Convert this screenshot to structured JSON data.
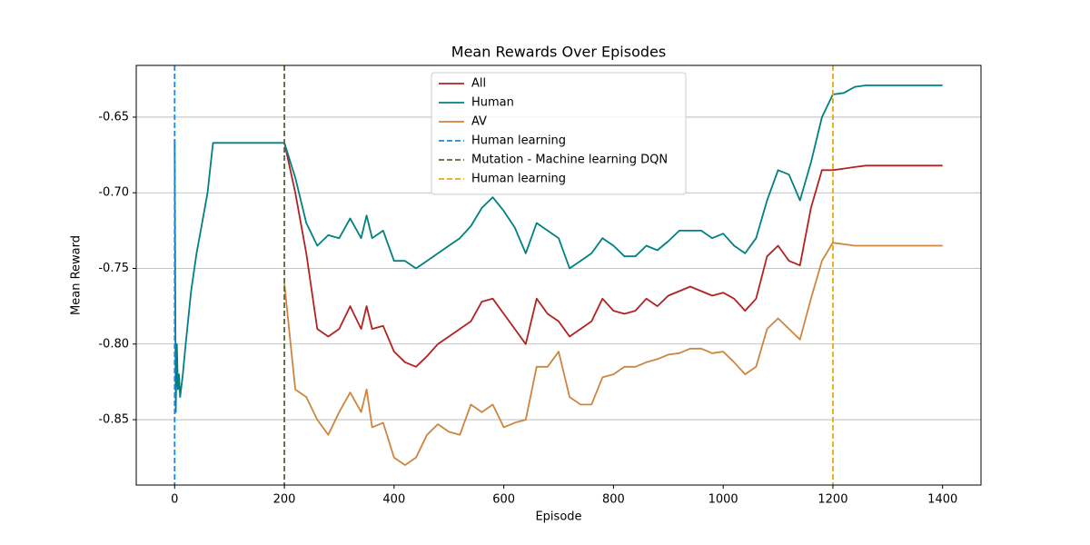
{
  "chart_data": {
    "type": "line",
    "title": "Mean Rewards Over Episodes",
    "x_label": "Episode",
    "y_label": "Mean Reward",
    "x": [
      0,
      2,
      4,
      6,
      8,
      10,
      15,
      20,
      30,
      40,
      50,
      60,
      70,
      80,
      100,
      120,
      140,
      160,
      180,
      200,
      220,
      240,
      260,
      280,
      300,
      320,
      340,
      350,
      360,
      380,
      400,
      420,
      440,
      460,
      480,
      500,
      520,
      540,
      560,
      580,
      600,
      620,
      640,
      660,
      680,
      700,
      720,
      740,
      760,
      780,
      800,
      820,
      840,
      860,
      880,
      900,
      920,
      940,
      960,
      980,
      1000,
      1020,
      1040,
      1060,
      1080,
      1100,
      1120,
      1140,
      1160,
      1180,
      1200,
      1220,
      1240,
      1260,
      1280,
      1300,
      1320,
      1340,
      1360,
      1380,
      1400
    ],
    "series": [
      {
        "name": "All",
        "color": "#b22222",
        "values": [
          null,
          null,
          null,
          null,
          null,
          null,
          null,
          null,
          null,
          null,
          null,
          null,
          null,
          null,
          null,
          null,
          null,
          null,
          null,
          -0.667,
          -0.7,
          -0.74,
          -0.79,
          -0.795,
          -0.79,
          -0.775,
          -0.79,
          -0.775,
          -0.79,
          -0.788,
          -0.805,
          -0.812,
          -0.815,
          -0.808,
          -0.8,
          -0.795,
          -0.79,
          -0.785,
          -0.772,
          -0.77,
          -0.78,
          -0.79,
          -0.8,
          -0.77,
          -0.78,
          -0.785,
          -0.795,
          -0.79,
          -0.785,
          -0.77,
          -0.778,
          -0.78,
          -0.778,
          -0.77,
          -0.775,
          -0.768,
          -0.765,
          -0.762,
          -0.765,
          -0.768,
          -0.766,
          -0.77,
          -0.778,
          -0.77,
          -0.742,
          -0.735,
          -0.745,
          -0.748,
          -0.71,
          -0.685,
          -0.685,
          -0.684,
          -0.683,
          -0.682,
          -0.682,
          -0.682,
          -0.682,
          -0.682,
          -0.682,
          -0.682,
          -0.682
        ]
      },
      {
        "name": "Human",
        "color": "#008080",
        "values": [
          -0.665,
          -0.845,
          -0.8,
          -0.83,
          -0.82,
          -0.835,
          -0.82,
          -0.8,
          -0.765,
          -0.74,
          -0.72,
          -0.7,
          -0.667,
          -0.667,
          -0.667,
          -0.667,
          -0.667,
          -0.667,
          -0.667,
          -0.667,
          -0.69,
          -0.72,
          -0.735,
          -0.728,
          -0.73,
          -0.717,
          -0.73,
          -0.715,
          -0.73,
          -0.725,
          -0.745,
          -0.745,
          -0.75,
          -0.745,
          -0.74,
          -0.735,
          -0.73,
          -0.722,
          -0.71,
          -0.703,
          -0.712,
          -0.723,
          -0.74,
          -0.72,
          -0.725,
          -0.73,
          -0.75,
          -0.745,
          -0.74,
          -0.73,
          -0.735,
          -0.742,
          -0.742,
          -0.735,
          -0.738,
          -0.732,
          -0.725,
          -0.725,
          -0.725,
          -0.73,
          -0.727,
          -0.735,
          -0.74,
          -0.73,
          -0.705,
          -0.685,
          -0.688,
          -0.705,
          -0.68,
          -0.65,
          -0.635,
          -0.634,
          -0.63,
          -0.629,
          -0.629,
          -0.629,
          -0.629,
          -0.629,
          -0.629,
          -0.629,
          -0.629
        ]
      },
      {
        "name": "AV",
        "color": "#cd853f",
        "values": [
          null,
          null,
          null,
          null,
          null,
          null,
          null,
          null,
          null,
          null,
          null,
          null,
          null,
          null,
          null,
          null,
          null,
          null,
          null,
          -0.76,
          -0.83,
          -0.835,
          -0.85,
          -0.86,
          -0.845,
          -0.832,
          -0.845,
          -0.83,
          -0.855,
          -0.852,
          -0.875,
          -0.88,
          -0.875,
          -0.86,
          -0.853,
          -0.858,
          -0.86,
          -0.84,
          -0.845,
          -0.84,
          -0.855,
          -0.852,
          -0.85,
          -0.815,
          -0.815,
          -0.805,
          -0.835,
          -0.84,
          -0.84,
          -0.822,
          -0.82,
          -0.815,
          -0.815,
          -0.812,
          -0.81,
          -0.807,
          -0.806,
          -0.803,
          -0.803,
          -0.806,
          -0.805,
          -0.812,
          -0.82,
          -0.815,
          -0.79,
          -0.783,
          -0.79,
          -0.797,
          -0.77,
          -0.745,
          -0.733,
          -0.734,
          -0.735,
          -0.735,
          -0.735,
          -0.735,
          -0.735,
          -0.735,
          -0.735,
          -0.735,
          -0.735
        ]
      }
    ],
    "vlines": [
      {
        "x": 0,
        "label": "Human learning",
        "color": "#1e88e5"
      },
      {
        "x": 200,
        "label": "Mutation - Machine learning DQN",
        "color": "#556b2f"
      },
      {
        "x": 1200,
        "label": "Human learning",
        "color": "#e6a817"
      }
    ],
    "xlim": [
      -70,
      1470
    ],
    "ylim": [
      -0.8932,
      -0.6158
    ],
    "xticks": [
      0,
      200,
      400,
      600,
      800,
      1000,
      1200,
      1400
    ],
    "yticks": [
      -0.85,
      {
        "value": -0.8,
        "label": "-0.80"
      },
      -0.75,
      {
        "value": -0.7,
        "label": "-0.70"
      },
      -0.65
    ],
    "grid": "y",
    "legend_loc": "upper center"
  }
}
